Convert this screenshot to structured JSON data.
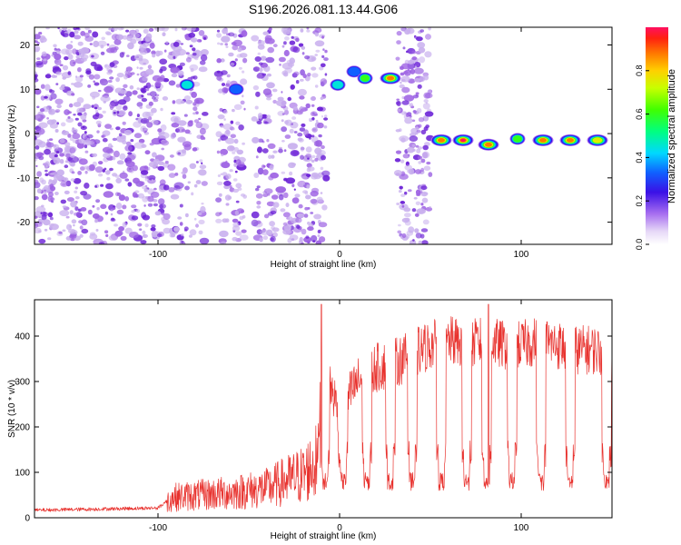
{
  "title": "S196.2026.081.13.44.G06",
  "colors": {
    "line": "#e8322e",
    "frame": "#000000",
    "speckle_light": "#c9b0ee",
    "speckle_mid": "#9d62e3",
    "speckle_dark": "#6a1fd6"
  },
  "colorbar": {
    "label": "Normalized spectral amplitude",
    "range": [
      0.0,
      1.0
    ],
    "tick_labels": [
      "0.0",
      "0.2",
      "0.4",
      "0.6",
      "0.8"
    ],
    "tick_values": [
      0.0,
      0.2,
      0.4,
      0.6,
      0.8
    ]
  },
  "chart_data": [
    {
      "type": "heatmap",
      "name": "spectrogram",
      "xlabel": "Height of straight line (km)",
      "ylabel": "Frequency (Hz)",
      "xlim": [
        -168,
        150
      ],
      "ylim": [
        -25,
        24
      ],
      "x_tick_labels": [
        "-100",
        "0",
        "100"
      ],
      "x_tick_values": [
        -100,
        0,
        100
      ],
      "y_tick_labels": [
        "-20",
        "-10",
        "0",
        "10",
        "20"
      ],
      "y_tick_values": [
        -20,
        -10,
        0,
        10,
        20
      ],
      "noise_bands": [
        {
          "x": [
            -168,
            -95
          ],
          "intensity": 0.5
        },
        {
          "x": [
            -93,
            -74
          ],
          "intensity": 0.4
        },
        {
          "x": [
            -67,
            -52
          ],
          "intensity": 0.45
        },
        {
          "x": [
            -47,
            -35
          ],
          "intensity": 0.4
        },
        {
          "x": [
            -33,
            -7
          ],
          "intensity": 0.45
        },
        {
          "x": [
            32,
            50
          ],
          "intensity": 0.5
        }
      ],
      "features": [
        {
          "x": -84,
          "y": 11,
          "amplitude": 0.45
        },
        {
          "x": -57,
          "y": 10,
          "amplitude": 0.4
        },
        {
          "x": -1,
          "y": 11,
          "amplitude": 0.5
        },
        {
          "x": 8,
          "y": 14,
          "amplitude": 0.35
        },
        {
          "x": 14,
          "y": 12.5,
          "amplitude": 0.7
        },
        {
          "x": 28,
          "y": 12.5,
          "amplitude": 0.9
        },
        {
          "x": 56,
          "y": -1.5,
          "amplitude": 0.95
        },
        {
          "x": 68,
          "y": -1.5,
          "amplitude": 1.0
        },
        {
          "x": 82,
          "y": -2.5,
          "amplitude": 0.9
        },
        {
          "x": 98,
          "y": -1.2,
          "amplitude": 0.6
        },
        {
          "x": 112,
          "y": -1.5,
          "amplitude": 0.9
        },
        {
          "x": 127,
          "y": -1.5,
          "amplitude": 0.95
        },
        {
          "x": 142,
          "y": -1.5,
          "amplitude": 0.85
        }
      ]
    },
    {
      "type": "line",
      "name": "snr",
      "xlabel": "Height of straight line (km)",
      "ylabel": "SNR (10 * v/v)",
      "xlim": [
        -168,
        150
      ],
      "ylim": [
        0,
        480
      ],
      "x_tick_labels": [
        "-100",
        "0",
        "100"
      ],
      "x_tick_values": [
        -100,
        0,
        100
      ],
      "y_tick_labels": [
        "0",
        "100",
        "200",
        "300",
        "400"
      ],
      "y_tick_values": [
        0,
        100,
        200,
        300,
        400
      ],
      "envelope": {
        "x": [
          -168,
          -100,
          -92,
          -60,
          -40,
          -20,
          -12,
          -10,
          0,
          10,
          20,
          30,
          40,
          50,
          60,
          70,
          80,
          90,
          100,
          110,
          120,
          130,
          140,
          150
        ],
        "y": [
          15,
          20,
          45,
          55,
          65,
          95,
          125,
          350,
          230,
          300,
          330,
          340,
          360,
          380,
          390,
          380,
          390,
          380,
          380,
          390,
          380,
          370,
          370,
          360
        ]
      },
      "dips_x": [
        -8,
        2,
        15,
        28,
        40,
        56,
        70,
        81,
        95,
        111,
        127,
        147
      ],
      "dip_level": 80,
      "peaks": [
        {
          "x": -10,
          "y": 470
        },
        {
          "x": 82,
          "y": 470
        }
      ]
    }
  ]
}
